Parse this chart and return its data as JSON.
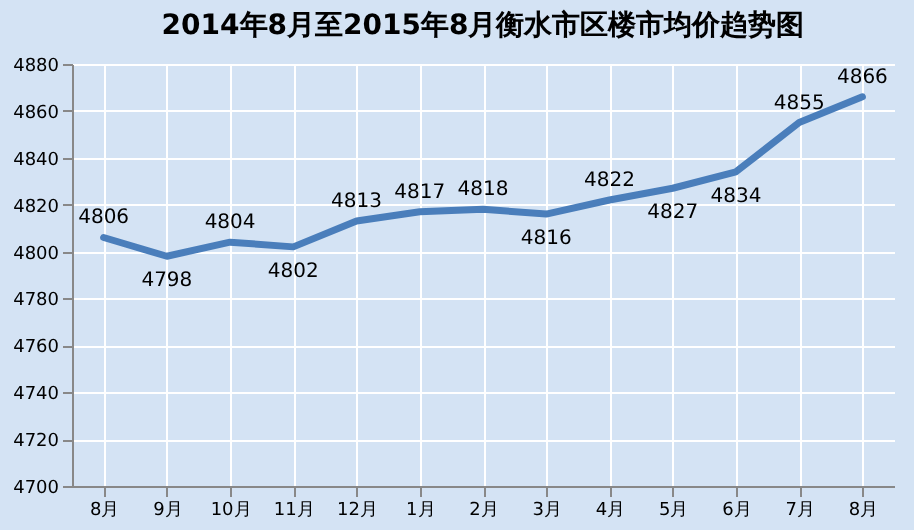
{
  "chart_data": {
    "type": "line",
    "title": "2014年8月至2015年8月衡水市区楼市均价趋势图",
    "categories": [
      "8月",
      "9月",
      "10月",
      "11月",
      "12月",
      "1月",
      "2月",
      "3月",
      "4月",
      "5月",
      "6月",
      "7月",
      "8月"
    ],
    "series": [
      {
        "color": "#4a7ebb",
        "values": [
          4806,
          4798,
          4804,
          4802,
          4813,
          4817,
          4818,
          4816,
          4822,
          4827,
          4834,
          4855,
          4866
        ]
      }
    ],
    "ylim": [
      4700,
      4880
    ],
    "yticks": [
      4700,
      4720,
      4740,
      4760,
      4780,
      4800,
      4820,
      4840,
      4860,
      4880
    ],
    "grid": true,
    "data_labels": true,
    "marker": "none",
    "line_style": "solid"
  }
}
